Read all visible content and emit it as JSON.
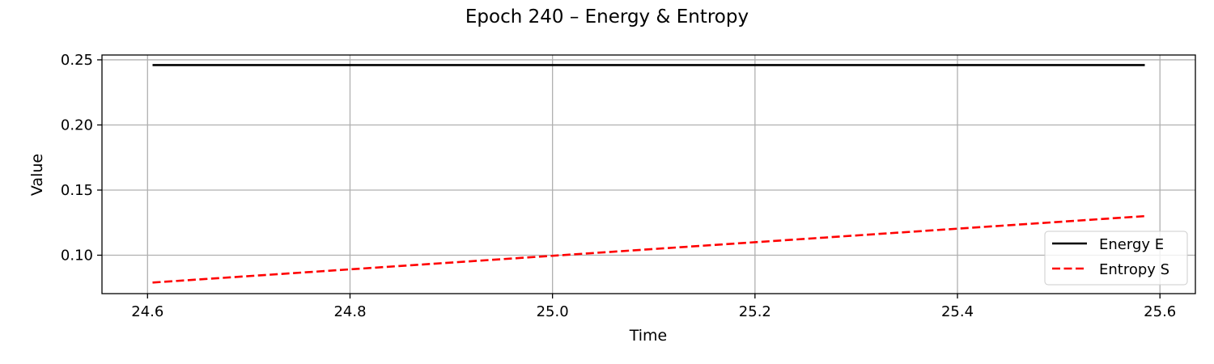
{
  "chart_data": {
    "type": "line",
    "title": "Epoch 240 – Energy & Entropy",
    "xlabel": "Time",
    "ylabel": "Value",
    "xlim": [
      24.555,
      25.635
    ],
    "ylim": [
      0.0705,
      0.2537
    ],
    "x_ticks": [
      24.6,
      24.8,
      25.0,
      25.2,
      25.4,
      25.6
    ],
    "x_tick_labels": [
      "24.6",
      "24.8",
      "25.0",
      "25.2",
      "25.4",
      "25.6"
    ],
    "y_ticks": [
      0.1,
      0.15,
      0.2,
      0.25
    ],
    "y_tick_labels": [
      "0.10",
      "0.15",
      "0.20",
      "0.25"
    ],
    "grid": true,
    "legend_position": "lower-right",
    "series": [
      {
        "name": "Energy E",
        "color": "#000000",
        "line_style": "solid",
        "x": [
          24.605,
          25.585
        ],
        "y": [
          0.246,
          0.246
        ]
      },
      {
        "name": "Entropy S",
        "color": "#ff0000",
        "line_style": "dashed",
        "x": [
          24.605,
          25.585
        ],
        "y": [
          0.079,
          0.13
        ]
      }
    ]
  }
}
